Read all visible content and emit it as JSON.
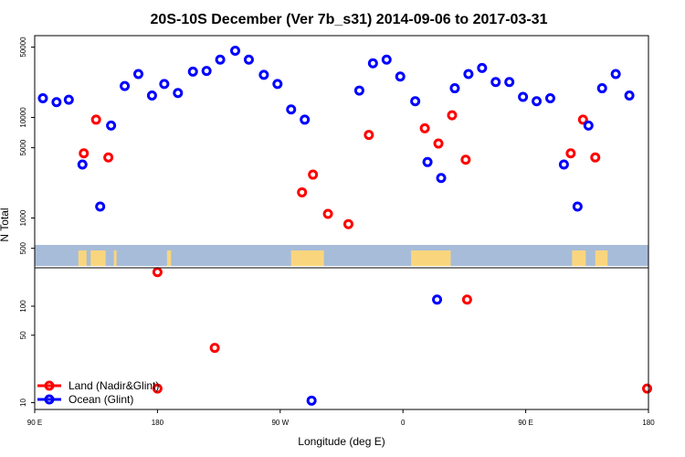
{
  "chart_data": {
    "type": "scatter",
    "title": "20S-10S December (Ver 7b_s31)   2014-09-06 to 2017-03-31",
    "xlabel": "Longitude (deg E)",
    "ylabel": "N Total",
    "x_unit": "degrees east, continuous axis spanning 90 E -> 180 -> 90 W -> 0 -> 90 E -> 180",
    "xlim": [
      90,
      540
    ],
    "x_ticks": [
      {
        "value": 90,
        "label": "90 E"
      },
      {
        "value": 180,
        "label": "180"
      },
      {
        "value": 270,
        "label": "90 W"
      },
      {
        "value": 360,
        "label": "0"
      },
      {
        "value": 450,
        "label": "90 E"
      },
      {
        "value": 540,
        "label": "180"
      }
    ],
    "top_panel": {
      "y_scale": "log",
      "ylim": [
        320,
        65000
      ],
      "y_ticks": [
        {
          "value": 500,
          "label": "500"
        },
        {
          "value": 1000,
          "label": "1000"
        },
        {
          "value": 5000,
          "label": "5000"
        },
        {
          "value": 10000,
          "label": "10000"
        },
        {
          "value": 50000,
          "label": "50000"
        }
      ],
      "map_strip": {
        "ocean_color": "#a7bcd9",
        "land_color": "#f9d67e",
        "land_extents": [
          [
            122,
            128
          ],
          [
            131,
            142
          ],
          [
            148,
            150
          ],
          [
            187,
            190
          ],
          [
            278,
            302
          ],
          [
            366,
            395
          ],
          [
            484,
            494
          ],
          [
            501,
            510
          ]
        ]
      },
      "series": [
        {
          "name": "Land (Nadir&Glint)",
          "color": "#ff0000",
          "points": [
            [
              126,
              4400
            ],
            [
              135,
              9500
            ],
            [
              144,
              4000
            ],
            [
              180,
              290
            ],
            [
              286,
              1800
            ],
            [
              294,
              2700
            ],
            [
              305,
              1100
            ],
            [
              320,
              870
            ],
            [
              335,
              6700
            ],
            [
              376,
              7800
            ],
            [
              386,
              5500
            ],
            [
              396,
              10500
            ],
            [
              406,
              3800
            ],
            [
              483,
              4400
            ],
            [
              492,
              9500
            ],
            [
              501,
              4000
            ]
          ]
        },
        {
          "name": "Ocean (Glint)",
          "color": "#0000ff",
          "points": [
            [
              96,
              15500
            ],
            [
              106,
              14200
            ],
            [
              115,
              15000
            ],
            [
              125,
              3400
            ],
            [
              138,
              1300
            ],
            [
              146,
              8300
            ],
            [
              156,
              20500
            ],
            [
              166,
              27000
            ],
            [
              176,
              16500
            ],
            [
              185,
              21500
            ],
            [
              195,
              17500
            ],
            [
              206,
              28500
            ],
            [
              216,
              29000
            ],
            [
              226,
              37500
            ],
            [
              237,
              46000
            ],
            [
              247,
              37500
            ],
            [
              258,
              26500
            ],
            [
              268,
              21500
            ],
            [
              278,
              12000
            ],
            [
              288,
              9500
            ],
            [
              328,
              18500
            ],
            [
              338,
              34500
            ],
            [
              348,
              37500
            ],
            [
              358,
              25500
            ],
            [
              369,
              14500
            ],
            [
              378,
              3600
            ],
            [
              388,
              2500
            ],
            [
              398,
              19500
            ],
            [
              408,
              27000
            ],
            [
              418,
              31000
            ],
            [
              428,
              22500
            ],
            [
              438,
              22500
            ],
            [
              448,
              16000
            ],
            [
              458,
              14500
            ],
            [
              468,
              15500
            ],
            [
              478,
              3400
            ],
            [
              488,
              1300
            ],
            [
              496,
              8300
            ],
            [
              506,
              19500
            ],
            [
              516,
              27000
            ],
            [
              526,
              16500
            ]
          ]
        }
      ]
    },
    "bottom_panel": {
      "y_scale": "log",
      "ylim": [
        8.5,
        250
      ],
      "y_ticks": [
        {
          "value": 10,
          "label": "10"
        },
        {
          "value": 50,
          "label": "50"
        },
        {
          "value": 100,
          "label": "100"
        }
      ],
      "series": [
        {
          "name": "Land (Nadir&Glint)",
          "color": "#ff0000",
          "points": [
            [
              180,
              14
            ],
            [
              222,
              37
            ],
            [
              407,
              117
            ],
            [
              539,
              14
            ]
          ]
        },
        {
          "name": "Ocean (Glint)",
          "color": "#0000ff",
          "points": [
            [
              293,
              10.5
            ],
            [
              385,
              117
            ]
          ]
        }
      ]
    },
    "legend": {
      "placement": "bottom-left of lower panel",
      "entries": [
        {
          "label": "Land (Nadir&Glint)",
          "color": "#ff0000"
        },
        {
          "label": "Ocean (Glint)",
          "color": "#0000ff"
        }
      ]
    },
    "grid": false
  }
}
